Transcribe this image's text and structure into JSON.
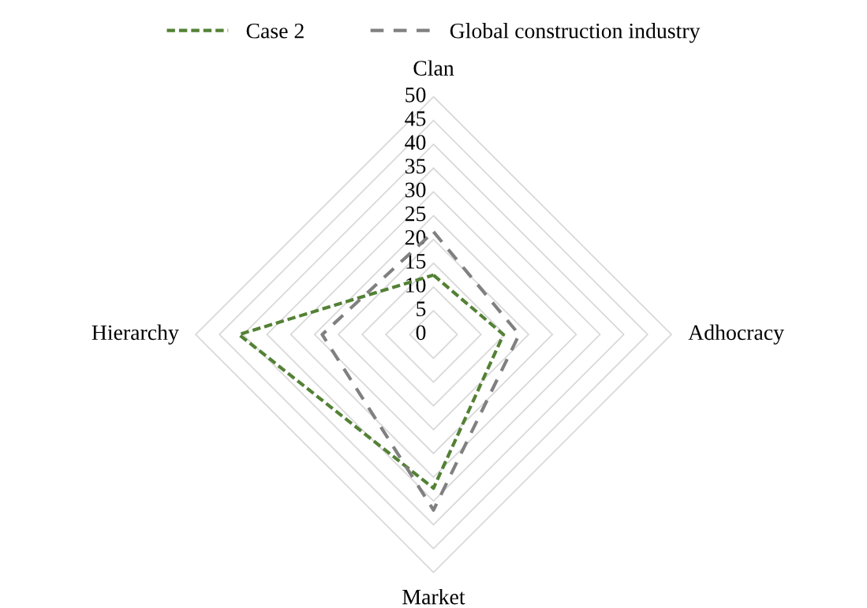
{
  "chart_data": {
    "type": "radar",
    "categories": [
      "Clan",
      "Adhocracy",
      "Market",
      "Hierarchy"
    ],
    "series": [
      {
        "name": "Case 2",
        "color": "#538135",
        "values": [
          12.5,
          14.7,
          32.3,
          40.9
        ],
        "line_style": "dotted"
      },
      {
        "name": "Global construction industry",
        "color": "#808080",
        "values": [
          21.6,
          18,
          36.9,
          23.4
        ],
        "line_style": "dashed"
      }
    ],
    "ylim": [
      0,
      50
    ],
    "yticks": [
      0,
      5,
      10,
      15,
      20,
      25,
      30,
      35,
      40,
      45,
      50
    ],
    "grid": true,
    "legend": "top",
    "marker": "none"
  }
}
